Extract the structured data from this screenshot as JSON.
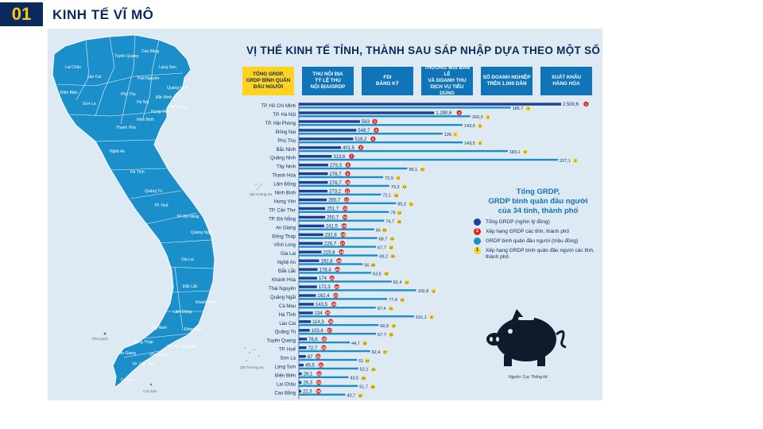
{
  "header": {
    "number": "01",
    "title": "KINH TẾ VĨ MÔ"
  },
  "infographic": {
    "title": "VỊ THẾ KINH TẾ TỈNH, THÀNH SAU SÁP NHẬP DỰA THEO MỘT SỐ CHỈ TIÊU CHỦ YẾU",
    "tabs": [
      {
        "label": "TỔNG GRDP,\nGRDP BÌNH QUÂN\nĐẦU NGƯỜI",
        "active": true
      },
      {
        "label": "THU NỘI ĐỊA\nTỶ LỆ THU\nNỘI ĐỊA/GRDP",
        "active": false
      },
      {
        "label": "FDI\nĐĂNG KÝ",
        "active": false
      },
      {
        "label": "THƯƠNG MẠI BÁN LẺ\nVÀ DOANH THU\nDỊCH VỤ TIÊU DÙNG",
        "active": false
      },
      {
        "label": "SỐ DOANH NGHIỆP\nTRÊN 1.000 DÂN",
        "active": false
      },
      {
        "label": "XUẤT KHẨU\nHÀNG HÓA",
        "active": false
      }
    ],
    "legend": {
      "title": "Tổng GRDP,\nGRDP bình quân đầu người\ncủa 34 tỉnh, thành phố",
      "items": [
        {
          "label": "Tổng GRDP (nghìn tỷ đồng)",
          "marker": "bar",
          "color": "#1f3f96"
        },
        {
          "label": "Xếp hạng GRDP các tỉnh, thành phố",
          "marker": "1",
          "color": "#e2231a"
        },
        {
          "label": "GRDP bình quân đầu người (triệu đồng)",
          "marker": "bar",
          "color": "#1b8fc9"
        },
        {
          "label": "Xếp hạng GRDP bình quân đầu người các tỉnh, thành phố",
          "marker": "1",
          "color": "#ffd21f"
        }
      ]
    },
    "source": "Nguồn: Cục Thống kê",
    "map_labels": [
      "Lai Châu",
      "Tuyên Quang",
      "Cao Bằng",
      "Lạng Sơn",
      "Lào Cai",
      "Thái Nguyên",
      "Điện Biên",
      "Sơn La",
      "Phú Thọ",
      "Quảng Ninh",
      "Hà Nội",
      "Bắc Ninh",
      "Hải Phòng",
      "Hưng Yên",
      "Ninh Bình",
      "Thanh Hóa",
      "Nghệ An",
      "Hà Tĩnh",
      "Quảng Trị",
      "TP. Huế",
      "TP. Đà Nẵng",
      "Quảng Ngãi",
      "Gia Lai",
      "Đắk Lắk",
      "Khánh Hòa",
      "Lâm Đồng",
      "TP. Hồ Chí Minh",
      "Đồng Nai",
      "Tây Ninh",
      "Vĩnh Long",
      "Đồng Tháp",
      "An Giang",
      "TP. Cần Thơ",
      "Cà Mau",
      "Phú Quốc",
      "Côn Đảo",
      "QĐ Hoàng Sa",
      "QĐ Trường Sa"
    ]
  },
  "chart_data": {
    "type": "bar",
    "categories": [
      "TP. Hồ Chí Minh",
      "TP. Hà Nội",
      "TP. Hải Phòng",
      "Đồng Nai",
      "Phú Thọ",
      "Bắc Ninh",
      "Quảng Ninh",
      "Tây Ninh",
      "Thanh Hóa",
      "Lâm Đồng",
      "Ninh Bình",
      "Hưng Yên",
      "TP. Cần Thơ",
      "TP. Đà Nẵng",
      "An Giang",
      "Đồng Tháp",
      "Vĩnh Long",
      "Gia Lai",
      "Nghệ An",
      "Đắk Lắk",
      "Khánh Hòa",
      "Thái Nguyên",
      "Quảng Ngãi",
      "Cà Mau",
      "Hà Tĩnh",
      "Lào Cai",
      "Quảng Trị",
      "Tuyên Quang",
      "TP. Huế",
      "Sơn La",
      "Lạng Sơn",
      "Điện Biên",
      "Lai Châu",
      "Cao Bằng"
    ],
    "series": [
      {
        "name": "Tổng GRDP (nghìn tỷ đồng)",
        "color": "#1f3f96",
        "labels": [
          "2.500,6",
          "1.290,6",
          "583",
          "548,7",
          "518,2",
          "401,5",
          "313,6",
          "279,3",
          "276,7",
          "276,7",
          "273,2",
          "265,7",
          "251,7",
          "250,7",
          "241,5",
          "232,8",
          "226,7",
          "215,8",
          "192,8",
          "178,4",
          "174",
          "172,3",
          "162,4",
          "143,5",
          "134",
          "114,3",
          "103,4",
          "76,6",
          "72,7",
          "67",
          "45,5",
          "28,1",
          "25,3",
          "22,3"
        ],
        "values": [
          2500.6,
          1290.6,
          583,
          548.7,
          518.2,
          401.5,
          313.6,
          279.3,
          276.7,
          276.7,
          273.2,
          265.7,
          251.7,
          250.7,
          241.5,
          232.8,
          226.7,
          215.8,
          192.8,
          178.4,
          174,
          172.3,
          162.4,
          143.5,
          134,
          114.3,
          103.4,
          76.6,
          72.7,
          67,
          45.5,
          28.1,
          25.3,
          22.3
        ],
        "ranks": [
          1,
          2,
          3,
          4,
          5,
          6,
          7,
          8,
          9,
          10,
          11,
          12,
          13,
          14,
          15,
          16,
          17,
          18,
          19,
          20,
          21,
          22,
          23,
          24,
          25,
          26,
          27,
          28,
          29,
          30,
          31,
          32,
          33,
          34
        ]
      },
      {
        "name": "GRDP bình quân đầu người (triệu đồng)",
        "color": "#1b8fc9",
        "labels": [
          "185,7",
          "150,3",
          "143,5",
          "126",
          "143,5",
          "183,1",
          "227,1",
          "95,1",
          "73,9",
          "79,3",
          "72,1",
          "85,2",
          "79",
          "74,7",
          "66",
          "68,7",
          "67,7",
          "69,2",
          "56",
          "63,5",
          "81,4",
          "102,8",
          "77,4",
          "67,4",
          "101,1",
          "69,9",
          "67,7",
          "44,7",
          "62,4",
          "51",
          "52,1",
          "43,5",
          "51,7",
          "40,7"
        ],
        "values": [
          185.7,
          150.3,
          143.5,
          126,
          143.5,
          183.1,
          227.1,
          95.1,
          73.9,
          79.3,
          72.1,
          85.2,
          79,
          74.7,
          66,
          68.7,
          67.7,
          69.2,
          56,
          63.5,
          81.4,
          102.8,
          77.4,
          67.4,
          101.1,
          69.9,
          67.7,
          44.7,
          62.4,
          51,
          52.1,
          43.5,
          51.7,
          40.7
        ],
        "ranks": [
          2,
          4,
          5,
          7,
          6,
          3,
          1,
          10,
          17,
          13,
          18,
          11,
          14,
          16,
          24,
          21,
          22,
          20,
          28,
          25,
          12,
          8,
          15,
          23,
          9,
          19,
          22,
          32,
          27,
          31,
          29,
          33,
          30,
          34
        ]
      }
    ]
  }
}
